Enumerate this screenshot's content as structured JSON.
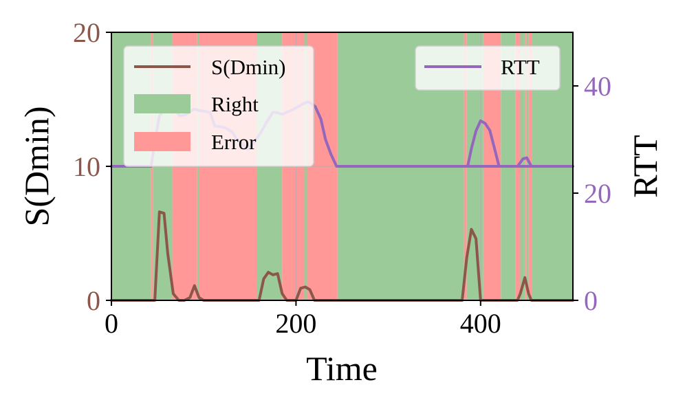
{
  "colors": {
    "sdmin": "#8c564b",
    "rtt": "#9467bd",
    "right": "#9bcb99",
    "error": "#ff9896",
    "grid": "#b0b0b0"
  },
  "chart_data": {
    "type": "line",
    "xlabel": "Time",
    "ylabel_left": "S(Dmin)",
    "ylabel_right": "RTT",
    "xlim": [
      0,
      500
    ],
    "ylim_left": [
      0,
      20
    ],
    "ylim_right": [
      0,
      50
    ],
    "xticks": [
      0,
      200,
      400
    ],
    "xtick_labels": [
      "0",
      "200",
      "400"
    ],
    "yticks_left": [
      0,
      10,
      20
    ],
    "ytick_labels_left": [
      "0",
      "10",
      "20"
    ],
    "yticks_right": [
      0,
      20,
      40
    ],
    "ytick_labels_right": [
      "0",
      "20",
      "40"
    ],
    "grid": true,
    "legend_left": {
      "location": "top-left",
      "entries": [
        {
          "label": "S(Dmin)",
          "kind": "line",
          "color": "#8c564b"
        },
        {
          "label": "Right",
          "kind": "patch",
          "color": "#9bcb99"
        },
        {
          "label": "Error",
          "kind": "patch",
          "color": "#ff9896"
        }
      ]
    },
    "legend_right": {
      "location": "top-right",
      "entries": [
        {
          "label": "RTT",
          "kind": "line",
          "color": "#9467bd"
        }
      ]
    },
    "regions": [
      {
        "state": "Right",
        "start": 0,
        "end": 43
      },
      {
        "state": "Error",
        "start": 43,
        "end": 45
      },
      {
        "state": "Right",
        "start": 45,
        "end": 66
      },
      {
        "state": "Error",
        "start": 66,
        "end": 93
      },
      {
        "state": "Right",
        "start": 93,
        "end": 95
      },
      {
        "state": "Error",
        "start": 95,
        "end": 158
      },
      {
        "state": "Right",
        "start": 158,
        "end": 185
      },
      {
        "state": "Error",
        "start": 185,
        "end": 209
      },
      {
        "state": "Right",
        "start": 209,
        "end": 212
      },
      {
        "state": "Error",
        "start": 212,
        "end": 245
      },
      {
        "state": "Right",
        "start": 245,
        "end": 382
      },
      {
        "state": "Error",
        "start": 382,
        "end": 385
      },
      {
        "state": "Right",
        "start": 385,
        "end": 403
      },
      {
        "state": "Error",
        "start": 403,
        "end": 422
      },
      {
        "state": "Right",
        "start": 422,
        "end": 438
      },
      {
        "state": "Error",
        "start": 438,
        "end": 443
      },
      {
        "state": "Right",
        "start": 443,
        "end": 448
      },
      {
        "state": "Error",
        "start": 448,
        "end": 450
      },
      {
        "state": "Right",
        "start": 450,
        "end": 452
      },
      {
        "state": "Error",
        "start": 452,
        "end": 456
      },
      {
        "state": "Right",
        "start": 456,
        "end": 500
      }
    ],
    "series": [
      {
        "name": "S(Dmin)",
        "axis": "left",
        "color": "#8c564b",
        "x": [
          0,
          43,
          47,
          52,
          57,
          61,
          67,
          73,
          79,
          85,
          90,
          95,
          100,
          105,
          155,
          160,
          165,
          170,
          175,
          180,
          185,
          190,
          195,
          200,
          205,
          210,
          215,
          220,
          225,
          375,
          380,
          385,
          390,
          395,
          400,
          405,
          410,
          440,
          443,
          448,
          452,
          455,
          500
        ],
        "values": [
          0,
          0,
          0,
          6.6,
          6.5,
          3.5,
          0.5,
          0,
          0,
          0.2,
          1.1,
          0.2,
          0,
          0,
          0,
          0,
          1.6,
          2.1,
          1.9,
          2.0,
          0.5,
          0,
          0,
          0,
          0.9,
          1.0,
          0.8,
          0,
          0,
          0,
          0,
          3.2,
          5.3,
          4.6,
          0,
          0,
          0,
          0,
          0.5,
          1.7,
          0.5,
          0,
          0
        ]
      },
      {
        "name": "RTT",
        "axis": "right",
        "color": "#9467bd",
        "x": [
          0,
          43,
          47,
          52,
          57,
          60,
          65,
          69,
          74,
          80,
          85,
          90,
          95,
          101,
          107,
          112,
          118,
          123,
          131,
          136,
          142,
          147,
          153,
          158,
          164,
          168,
          175,
          180,
          185,
          190,
          197,
          202,
          208,
          213,
          217,
          221,
          227,
          232,
          238,
          244,
          500
        ],
        "values": [
          25,
          25,
          29.4,
          34.4,
          35.5,
          35.4,
          35.6,
          35.6,
          34.4,
          34.6,
          35.2,
          35.7,
          35.4,
          35.3,
          35.0,
          32.5,
          32.4,
          32.2,
          31.4,
          30.0,
          29.1,
          28.2,
          29.2,
          30.3,
          31.9,
          33.2,
          35.1,
          35.0,
          34.7,
          35.1,
          35.6,
          36.1,
          36.7,
          37.0,
          36.7,
          36.1,
          33.8,
          30.0,
          27.2,
          25,
          25
        ]
      }
    ],
    "rtt_peaks": [
      {
        "x": [
          382,
          386,
          390,
          395,
          400,
          405,
          410,
          415,
          420,
          437,
          440,
          446,
          450,
          455
        ],
        "values": [
          25,
          25,
          28.3,
          31.6,
          33.5,
          33.0,
          31.7,
          28.4,
          25,
          25,
          25,
          26.4,
          26.6,
          25
        ]
      }
    ]
  }
}
